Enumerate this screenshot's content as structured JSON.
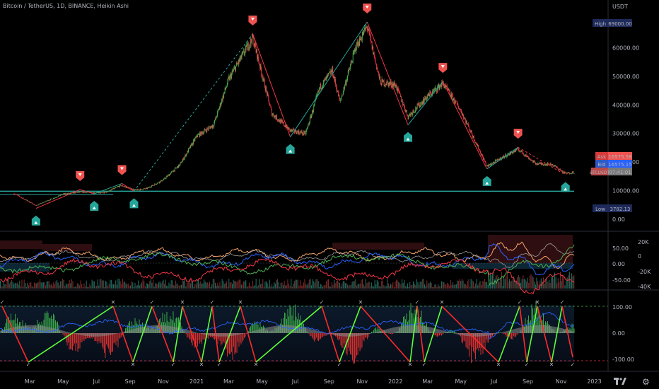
{
  "title": "Bitcoin / TetherUS, 1D, BINANCE, Heikin Ashi",
  "currency": "USDT",
  "x_ticks": [
    "Mar",
    "May",
    "Jul",
    "Sep",
    "Nov",
    "2021",
    "Mar",
    "May",
    "Jul",
    "Sep",
    "Nov",
    "2022",
    "Mar",
    "May",
    "Jul",
    "Sep",
    "Nov",
    "2023"
  ],
  "price_ticks": [
    "60000.00",
    "50000.00",
    "40000.00",
    "30000.00",
    "20000.00",
    "10000.00",
    "0.00"
  ],
  "labels": {
    "high_tag": "High",
    "high_val": "69000.00",
    "ask_tag": "Ask",
    "ask_val": "16575.58",
    "bid_tag": "Bid",
    "bid_val": "16575.15",
    "sym_tag": "BTCUSDT",
    "sym_val": "07:41:01",
    "low_tag": "Low",
    "low_val": "3782.13"
  },
  "osc1_ticks_right": [
    "20K",
    "0",
    "-20K",
    "-40K"
  ],
  "osc1_ticks_left": [
    "50.00",
    "0.00",
    "-50.00"
  ],
  "osc2_ticks": [
    "100.00",
    "0.00",
    "-100.00"
  ],
  "colors": {
    "up": "#26a69a",
    "down": "#ef5350",
    "green": "#4caf50",
    "red": "#f23645",
    "blue": "#2962ff"
  },
  "chart_data": {
    "type": "line",
    "x": [
      "2020-02-01",
      "2020-03-12",
      "2020-05-01",
      "2020-06-01",
      "2020-07-15",
      "2020-08-15",
      "2020-09-10",
      "2020-10-01",
      "2020-11-01",
      "2020-12-01",
      "2021-01-01",
      "2021-02-01",
      "2021-03-01",
      "2021-04-14",
      "2021-05-19",
      "2021-06-22",
      "2021-07-20",
      "2021-08-15",
      "2021-09-07",
      "2021-09-21",
      "2021-10-20",
      "2021-11-10",
      "2021-12-04",
      "2022-01-01",
      "2022-01-24",
      "2022-03-01",
      "2022-03-29",
      "2022-05-01",
      "2022-06-18",
      "2022-07-15",
      "2022-08-14",
      "2022-09-15",
      "2022-10-15",
      "2022-11-09",
      "2022-11-25"
    ],
    "series": [
      {
        "values": [
          9000,
          4800,
          8800,
          9500,
          9200,
          11800,
          10200,
          10700,
          13800,
          19000,
          29000,
          33000,
          49000,
          63500,
          37000,
          31000,
          30000,
          46000,
          52000,
          41000,
          60000,
          67500,
          48000,
          47000,
          36000,
          43000,
          47500,
          38000,
          18500,
          21500,
          24500,
          19500,
          19200,
          16000,
          16500
        ]
      }
    ],
    "ylim": [
      0,
      70000
    ],
    "markers": {
      "tops": [
        {
          "x": "2020-06-01",
          "y": 10400
        },
        {
          "x": "2020-08-17",
          "y": 12500
        },
        {
          "x": "2021-04-14",
          "y": 64800
        },
        {
          "x": "2021-11-10",
          "y": 69000
        },
        {
          "x": "2022-03-29",
          "y": 48200
        },
        {
          "x": "2022-08-14",
          "y": 25200
        }
      ],
      "bottoms": [
        {
          "x": "2020-03-12",
          "y": 3782
        },
        {
          "x": "2020-06-27",
          "y": 8900
        },
        {
          "x": "2020-09-08",
          "y": 9800
        },
        {
          "x": "2021-06-22",
          "y": 28800
        },
        {
          "x": "2022-01-24",
          "y": 33000
        },
        {
          "x": "2022-06-18",
          "y": 17600
        },
        {
          "x": "2022-11-09",
          "y": 15500
        }
      ]
    },
    "hlines": [
      9800,
      3782
    ]
  }
}
